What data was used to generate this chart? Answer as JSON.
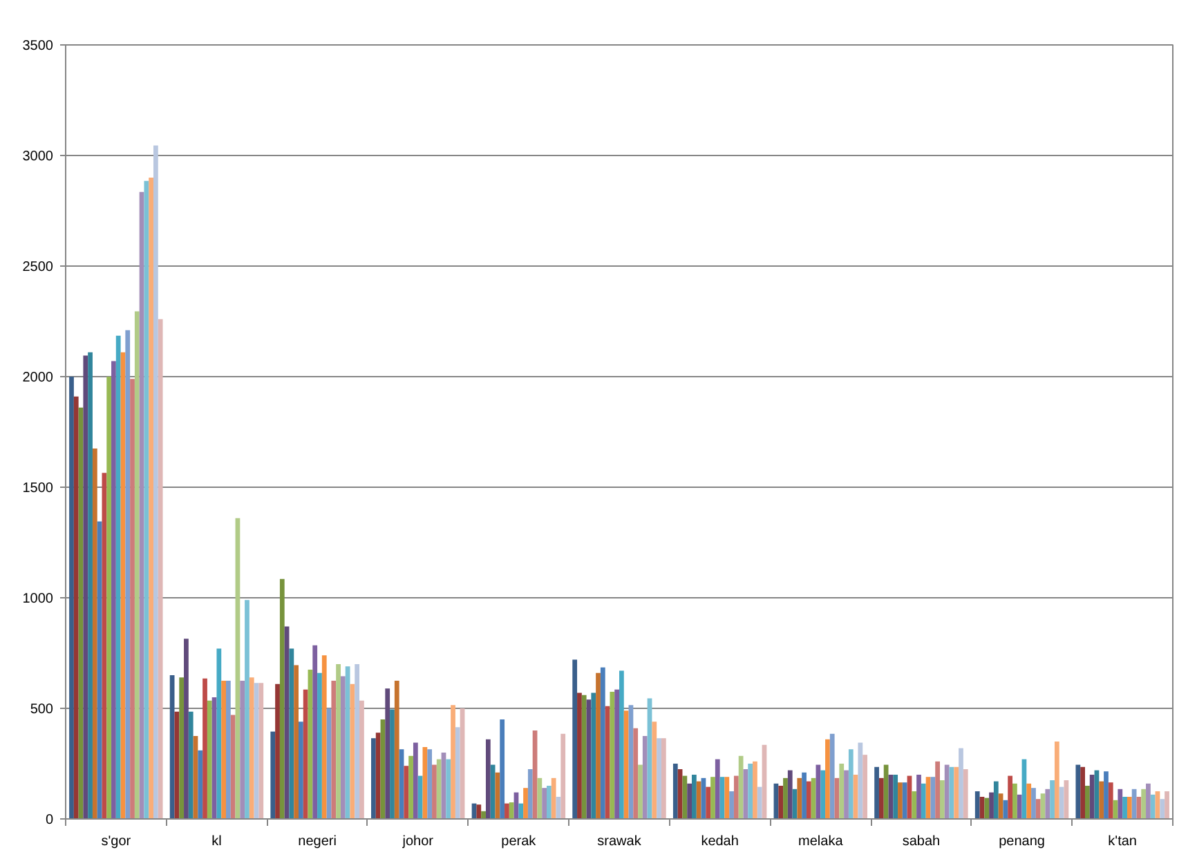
{
  "chart_data": {
    "type": "bar",
    "categories": [
      "s'gor",
      "kl",
      "negeri",
      "johor",
      "perak",
      "srawak",
      "kedah",
      "melaka",
      "sabah",
      "penang",
      "k'tan"
    ],
    "ylim": [
      0,
      3500
    ],
    "yticks": [
      0,
      500,
      1000,
      1500,
      2000,
      2500,
      3000,
      3500
    ],
    "grid": "y",
    "series": [
      {
        "color": "#3a5f8b",
        "values": [
          2000,
          650,
          395,
          365,
          70,
          720,
          250,
          160,
          235,
          125,
          245
        ]
      },
      {
        "color": "#953735",
        "values": [
          1910,
          485,
          610,
          390,
          65,
          570,
          225,
          150,
          185,
          100,
          235
        ]
      },
      {
        "color": "#77933c",
        "values": [
          1860,
          640,
          1085,
          450,
          35,
          560,
          195,
          185,
          245,
          95,
          150
        ]
      },
      {
        "color": "#604a7b",
        "values": [
          2095,
          815,
          870,
          590,
          360,
          540,
          160,
          220,
          200,
          120,
          200
        ]
      },
      {
        "color": "#31859c",
        "values": [
          2110,
          485,
          770,
          495,
          245,
          570,
          200,
          135,
          200,
          170,
          220
        ]
      },
      {
        "color": "#c6732e",
        "values": [
          1675,
          375,
          695,
          625,
          210,
          660,
          170,
          185,
          165,
          115,
          170
        ]
      },
      {
        "color": "#4a7ebb",
        "values": [
          1345,
          310,
          440,
          315,
          450,
          685,
          185,
          210,
          165,
          85,
          215
        ]
      },
      {
        "color": "#be4b48",
        "values": [
          1565,
          635,
          585,
          240,
          70,
          510,
          145,
          170,
          195,
          195,
          165
        ]
      },
      {
        "color": "#98b954",
        "values": [
          2000,
          535,
          675,
          285,
          75,
          575,
          190,
          185,
          125,
          160,
          85
        ]
      },
      {
        "color": "#7d60a0",
        "values": [
          2070,
          550,
          785,
          345,
          120,
          585,
          270,
          245,
          200,
          110,
          135
        ]
      },
      {
        "color": "#46aac5",
        "values": [
          2185,
          770,
          660,
          195,
          70,
          670,
          190,
          220,
          160,
          270,
          100
        ]
      },
      {
        "color": "#f69240",
        "values": [
          2110,
          625,
          740,
          325,
          140,
          490,
          190,
          360,
          190,
          160,
          100
        ]
      },
      {
        "color": "#7f9fcf",
        "values": [
          2210,
          625,
          500,
          315,
          225,
          515,
          125,
          385,
          190,
          140,
          135
        ]
      },
      {
        "color": "#cd7c7a",
        "values": [
          1990,
          470,
          625,
          245,
          400,
          410,
          195,
          185,
          260,
          90,
          100
        ]
      },
      {
        "color": "#b1cb87",
        "values": [
          2295,
          1360,
          700,
          270,
          185,
          245,
          285,
          250,
          175,
          115,
          135
        ]
      },
      {
        "color": "#a28eb9",
        "values": [
          2835,
          625,
          645,
          300,
          140,
          375,
          225,
          220,
          245,
          135,
          160
        ]
      },
      {
        "color": "#7bc1d6",
        "values": [
          2885,
          990,
          690,
          270,
          150,
          545,
          250,
          315,
          235,
          175,
          110
        ]
      },
      {
        "color": "#f9ad78",
        "values": [
          2900,
          640,
          610,
          515,
          185,
          440,
          260,
          200,
          235,
          350,
          125
        ]
      },
      {
        "color": "#b9c7e0",
        "values": [
          3045,
          615,
          700,
          415,
          100,
          365,
          145,
          345,
          320,
          145,
          90
        ]
      },
      {
        "color": "#dfb7b6",
        "values": [
          2260,
          615,
          535,
          500,
          385,
          365,
          335,
          290,
          225,
          175,
          125
        ]
      }
    ]
  }
}
